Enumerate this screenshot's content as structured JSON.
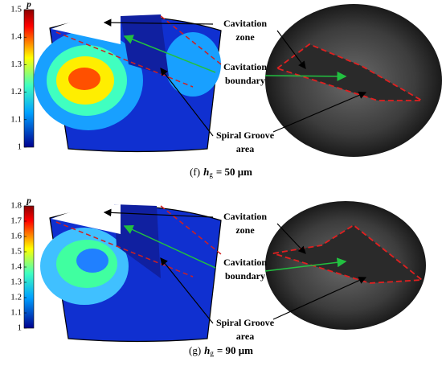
{
  "panels": [
    {
      "colorbar": {
        "label": "p",
        "ticks": [
          "1.5",
          "1.4",
          "1.3",
          "1.2",
          "1.1",
          "1"
        ]
      },
      "annotations": [
        {
          "lines": [
            "Cavitation",
            "zone"
          ]
        },
        {
          "lines": [
            "Cavitation",
            "boundary"
          ]
        },
        {
          "lines": [
            "Spiral Groove",
            "area"
          ]
        }
      ],
      "caption": {
        "prefix": "(f)",
        "symbol": "h",
        "subscript": "g",
        "suffix": "= 50 μm"
      }
    },
    {
      "colorbar": {
        "label": "p",
        "ticks": [
          "1.8",
          "1.7",
          "1.6",
          "1.5",
          "1.4",
          "1.3",
          "1.2",
          "1.1",
          "1"
        ]
      },
      "annotations": [
        {
          "lines": [
            "Cavitation",
            "zone"
          ]
        },
        {
          "lines": [
            "Cavitation",
            "boundary"
          ]
        },
        {
          "lines": [
            "Spiral Groove",
            "area"
          ]
        }
      ],
      "caption": {
        "prefix": "(g)",
        "symbol": "h",
        "subscript": "g",
        "suffix": "= 90 μm"
      }
    }
  ]
}
